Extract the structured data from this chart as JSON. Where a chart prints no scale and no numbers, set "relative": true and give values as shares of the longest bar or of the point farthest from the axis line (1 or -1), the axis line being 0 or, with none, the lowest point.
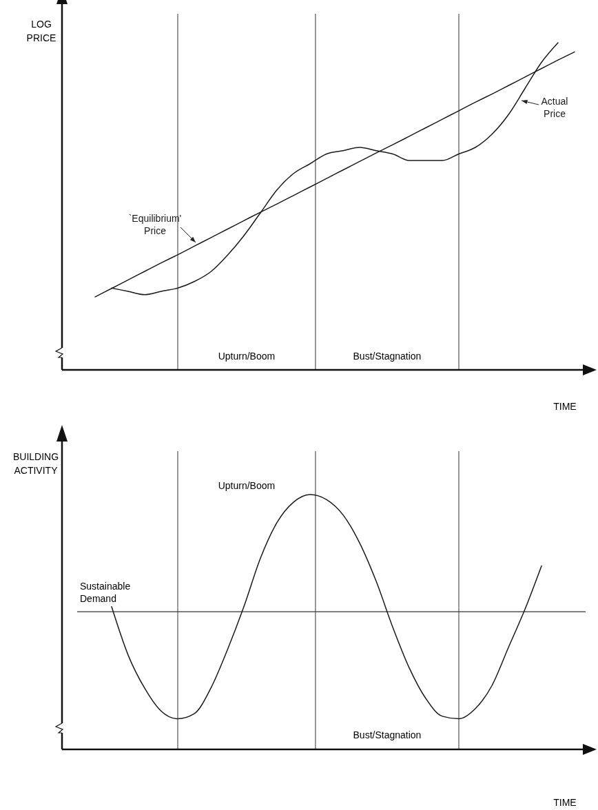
{
  "chart_data": [
    {
      "type": "line",
      "relative": true,
      "ylabel": "LOG PRICE",
      "xlabel": "TIME",
      "categories": [
        null,
        null,
        null,
        null,
        null,
        null,
        null,
        null,
        null,
        null,
        null,
        null,
        null,
        null,
        null,
        null,
        null,
        null,
        null,
        null,
        null,
        null,
        null,
        null,
        null,
        null,
        null,
        null,
        null,
        null,
        null,
        null,
        null
      ],
      "series": [
        {
          "name": "`Equilibrium' Price",
          "color": "#1a1a1a",
          "values": [
            null,
            null,
            0.223,
            0.249,
            0.275,
            0.301,
            0.327,
            0.352,
            0.378,
            0.404,
            0.43,
            0.456,
            0.482,
            0.507,
            0.533,
            0.559,
            0.585,
            0.611,
            0.637,
            0.663,
            0.688,
            0.714,
            0.74,
            0.766,
            0.792,
            0.818,
            0.843,
            0.869,
            0.895,
            0.921,
            0.947,
            0.972,
            null
          ]
        },
        {
          "name": "Actual Price",
          "color": "#1a1a1a",
          "values": [
            null,
            null,
            null,
            0.25,
            0.24,
            0.23,
            0.24,
            0.25,
            0.27,
            0.3,
            0.35,
            0.41,
            0.48,
            0.55,
            0.6,
            0.63,
            0.66,
            0.67,
            0.68,
            0.67,
            0.66,
            0.64,
            0.64,
            0.64,
            0.66,
            0.68,
            0.72,
            0.78,
            0.86,
            0.94,
            1.0,
            null,
            null
          ]
        }
      ],
      "annotations": [
        "Upturn/Boom",
        "Bust/Stagnation"
      ]
    },
    {
      "type": "line",
      "relative": true,
      "ylabel": "BUILDING ACTIVITY",
      "xlabel": "TIME",
      "categories": [
        null,
        null,
        null,
        null,
        null,
        null,
        null,
        null,
        null,
        null,
        null,
        null,
        null,
        null,
        null,
        null,
        null,
        null,
        null,
        null,
        null,
        null,
        null,
        null,
        null,
        null,
        null,
        null,
        null,
        null,
        null,
        null,
        null
      ],
      "series": [
        {
          "color": "#1a1a1a",
          "values": [
            null,
            null,
            null,
            0.56,
            0.37,
            0.24,
            0.15,
            0.12,
            0.14,
            0.24,
            0.39,
            0.56,
            0.75,
            0.89,
            0.97,
            1.0,
            0.98,
            0.92,
            0.81,
            0.66,
            0.48,
            0.32,
            0.2,
            0.13,
            0.12,
            0.16,
            0.25,
            0.4,
            0.55,
            0.72,
            null,
            null,
            null
          ]
        }
      ],
      "ref_lines": [
        {
          "axis": "y",
          "value": 0.54,
          "label": "Sustainable Demand"
        }
      ],
      "annotations": [
        "Upturn/Boom",
        "Bust/Stagnation"
      ]
    }
  ]
}
